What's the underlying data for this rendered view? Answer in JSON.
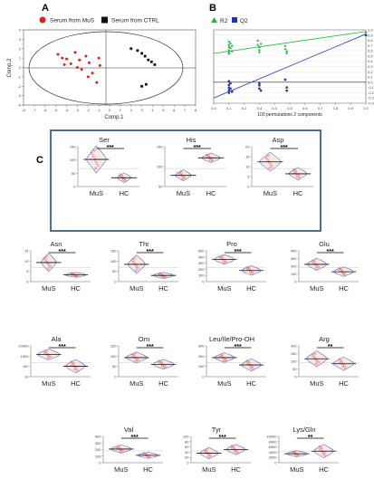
{
  "panels": {
    "a": "A",
    "b": "B",
    "c": "C"
  },
  "panel_a": {
    "legend": [
      {
        "label": "Serum from MuS",
        "color": "#e02020"
      },
      {
        "label": "Serum from CTRL",
        "color": "#111111"
      }
    ],
    "xlabel": "Comp.1",
    "ylabel": "Comp.2",
    "x_ticks": [
      "-8",
      "-7",
      "-6",
      "-5",
      "-4",
      "-3",
      "-2",
      "-1",
      "0",
      "1",
      "2",
      "3",
      "4",
      "5",
      "6",
      "7",
      "8"
    ],
    "y_ticks": [
      "4",
      "3",
      "2",
      "1",
      "0",
      "-1",
      "-2",
      "-3",
      "-4"
    ]
  },
  "panel_b": {
    "legend": [
      {
        "label": "R2",
        "color": "#29b34a",
        "marker": "triangle"
      },
      {
        "label": "Q2",
        "color": "#1f2fbf",
        "marker": "square"
      }
    ],
    "xlabel": "100 permutations 2 components",
    "x_ticks": [
      "0.0",
      "0.1",
      "0.2",
      "0.3",
      "0.4",
      "0.5",
      "0.6",
      "0.7",
      "0.8",
      "0.9",
      "1.0"
    ],
    "y_ticks": [
      "1.0",
      "0.9",
      "0.8",
      "0.7",
      "0.6",
      "0.5",
      "0.4",
      "0.3",
      "0.2",
      "0.1",
      "0.0",
      "-0.1",
      "-0.2",
      "-0.3",
      "-0.4"
    ]
  },
  "chart_data": [
    {
      "type": "scatter",
      "panel": "A",
      "xlabel": "Comp.1",
      "ylabel": "Comp.2",
      "xlim": [
        -8,
        8
      ],
      "ylim": [
        -4,
        4
      ],
      "series": [
        {
          "name": "Serum from MuS",
          "x": [
            -4.8,
            -4.4,
            -4.0,
            -3.6,
            -3.2,
            -2.8,
            -2.6,
            -2.2,
            -1.9,
            -1.6,
            -1.2,
            -0.9,
            -3.0,
            -2.0,
            -4.2,
            -1.0
          ],
          "y": [
            1.4,
            1.0,
            0.9,
            0.4,
            1.6,
            0.8,
            -0.2,
            1.2,
            0.5,
            -0.6,
            -1.6,
            0.2,
            0.0,
            -1.0,
            0.3,
            1.0
          ]
        },
        {
          "name": "Serum from CTRL",
          "x": [
            2.0,
            2.6,
            3.0,
            3.3,
            3.6,
            3.9,
            4.2,
            3.4,
            3.0
          ],
          "y": [
            2.0,
            1.8,
            1.5,
            1.2,
            0.8,
            0.6,
            0.3,
            -1.8,
            -2.0
          ]
        }
      ]
    },
    {
      "type": "scatter",
      "panel": "B",
      "xlabel": "100 permutations 2 components",
      "xlim": [
        0.0,
        1.0
      ],
      "ylim": [
        -0.4,
        1.0
      ],
      "series": [
        {
          "name": "R2",
          "x": [
            0.1,
            0.1,
            0.1,
            0.1,
            0.1,
            0.1,
            0.11,
            0.11,
            0.12,
            0.12,
            0.29,
            0.29,
            0.3,
            0.3,
            0.3,
            0.31,
            0.47,
            0.47,
            0.48,
            0.48,
            1.0
          ],
          "y": [
            0.78,
            0.72,
            0.68,
            0.62,
            0.58,
            0.55,
            0.75,
            0.66,
            0.7,
            0.6,
            0.8,
            0.72,
            0.68,
            0.62,
            0.58,
            0.74,
            0.7,
            0.64,
            0.6,
            0.56,
            0.96
          ]
        },
        {
          "name": "Q2",
          "x": [
            0.1,
            0.1,
            0.1,
            0.1,
            0.1,
            0.11,
            0.11,
            0.12,
            0.3,
            0.3,
            0.3,
            0.31,
            0.47,
            0.48,
            0.48,
            1.0
          ],
          "y": [
            0.02,
            -0.05,
            -0.1,
            -0.15,
            -0.2,
            -0.02,
            -0.12,
            -0.18,
            -0.02,
            -0.06,
            -0.12,
            -0.16,
            0.05,
            -0.1,
            -0.16,
            0.9
          ]
        }
      ],
      "lines": [
        {
          "name": "R2",
          "x": [
            0.0,
            1.0
          ],
          "y": [
            0.55,
            0.97
          ]
        },
        {
          "name": "Q2",
          "x": [
            0.0,
            1.0
          ],
          "y": [
            -0.3,
            0.92
          ]
        }
      ]
    }
  ],
  "violins": [
    {
      "key": "ser",
      "title": "Ser",
      "yticks": [
        "150",
        "100",
        "50",
        "0"
      ],
      "groups": [
        "MuS",
        "HC"
      ],
      "sig": "***",
      "mus_med": 0.68,
      "hc_med": 0.22,
      "mus_w": 0.9,
      "hc_w": 0.6,
      "mus_spread": 0.34,
      "hc_spread": 0.12
    },
    {
      "key": "his",
      "title": "His",
      "yticks": [
        "150",
        "100",
        "50"
      ],
      "groups": [
        "MuS",
        "HC"
      ],
      "sig": "***",
      "mus_med": 0.28,
      "hc_med": 0.72,
      "mus_w": 0.7,
      "hc_w": 0.8,
      "mus_spread": 0.14,
      "hc_spread": 0.12
    },
    {
      "key": "asp",
      "title": "Asp",
      "yticks": [
        "20",
        "15",
        "10",
        "5",
        "0"
      ],
      "groups": [
        "MuS",
        "HC"
      ],
      "sig": "***",
      "mus_med": 0.62,
      "hc_med": 0.32,
      "mus_w": 0.95,
      "hc_w": 0.8,
      "mus_spread": 0.24,
      "hc_spread": 0.16
    },
    {
      "key": "asn",
      "title": "Asn",
      "yticks": [
        "15",
        "10",
        "5",
        "0"
      ],
      "groups": [
        "MuS",
        "HC"
      ],
      "sig": "***",
      "mus_med": 0.62,
      "hc_med": 0.22,
      "mus_w": 0.7,
      "hc_w": 0.9,
      "mus_spread": 0.3,
      "hc_spread": 0.08
    },
    {
      "key": "thr",
      "title": "Thr",
      "yticks": [
        "150",
        "100",
        "50",
        "0"
      ],
      "groups": [
        "MuS",
        "HC"
      ],
      "sig": "***",
      "mus_med": 0.56,
      "hc_med": 0.2,
      "mus_w": 0.8,
      "hc_w": 0.9,
      "mus_spread": 0.3,
      "hc_spread": 0.1
    },
    {
      "key": "pro",
      "title": "Pro",
      "yticks": [
        "500",
        "400",
        "300",
        "200",
        "100",
        "0"
      ],
      "groups": [
        "MuS",
        "HC"
      ],
      "sig": "***",
      "mus_med": 0.72,
      "hc_med": 0.36,
      "mus_w": 0.9,
      "hc_w": 0.85,
      "mus_spread": 0.16,
      "hc_spread": 0.16
    },
    {
      "key": "glu",
      "title": "Glu",
      "yticks": [
        "400",
        "300",
        "200",
        "100",
        "0"
      ],
      "groups": [
        "MuS",
        "HC"
      ],
      "sig": "***",
      "mus_med": 0.56,
      "hc_med": 0.32,
      "mus_w": 0.9,
      "hc_w": 0.9,
      "mus_spread": 0.2,
      "hc_spread": 0.16
    },
    {
      "key": "ala",
      "title": "Ala",
      "yticks": [
        "10000",
        "1000",
        "100",
        "10"
      ],
      "groups": [
        "MuS",
        "HC"
      ],
      "sig": "***",
      "mus_med": 0.72,
      "hc_med": 0.34,
      "mus_w": 1.0,
      "hc_w": 0.9,
      "mus_spread": 0.18,
      "hc_spread": 0.22
    },
    {
      "key": "orn",
      "title": "Orn",
      "yticks": [
        "150",
        "100",
        "50",
        "0"
      ],
      "groups": [
        "MuS",
        "HC"
      ],
      "sig": "***",
      "mus_med": 0.62,
      "hc_med": 0.4,
      "mus_w": 0.95,
      "hc_w": 0.95,
      "mus_spread": 0.18,
      "hc_spread": 0.16
    },
    {
      "key": "leu",
      "title": "Leu/Ile/Pro-OH",
      "yticks": [
        "300",
        "200",
        "100",
        "0"
      ],
      "groups": [
        "MuS",
        "HC"
      ],
      "sig": "***",
      "mus_med": 0.62,
      "hc_med": 0.38,
      "mus_w": 0.9,
      "hc_w": 0.9,
      "mus_spread": 0.16,
      "hc_spread": 0.2
    },
    {
      "key": "arg",
      "title": "Arg",
      "yticks": [
        "200",
        "150",
        "100",
        "50",
        "0"
      ],
      "groups": [
        "MuS",
        "HC"
      ],
      "sig": "**",
      "mus_med": 0.58,
      "hc_med": 0.42,
      "mus_w": 0.95,
      "hc_w": 0.95,
      "mus_spread": 0.26,
      "hc_spread": 0.22
    },
    {
      "key": "val",
      "title": "Val",
      "yticks": [
        "400",
        "300",
        "200",
        "100",
        "0"
      ],
      "groups": [
        "MuS",
        "HC"
      ],
      "sig": "***",
      "mus_med": 0.52,
      "hc_med": 0.28,
      "mus_w": 0.9,
      "hc_w": 0.9,
      "mus_spread": 0.16,
      "hc_spread": 0.12
    },
    {
      "key": "tyr",
      "title": "Tyr",
      "yticks": [
        "100",
        "80",
        "60",
        "40",
        "20",
        "0"
      ],
      "groups": [
        "MuS",
        "HC"
      ],
      "sig": "***",
      "mus_med": 0.36,
      "hc_med": 0.5,
      "mus_w": 0.85,
      "hc_w": 0.85,
      "mus_spread": 0.22,
      "hc_spread": 0.2
    },
    {
      "key": "lys",
      "title": "Lys/Gln",
      "yticks": [
        "10000",
        "8000",
        "6000",
        "4000",
        "2000",
        "0"
      ],
      "groups": [
        "MuS",
        "HC"
      ],
      "sig": "**",
      "mus_med": 0.34,
      "hc_med": 0.44,
      "mus_w": 0.9,
      "hc_w": 0.9,
      "mus_spread": 0.12,
      "hc_spread": 0.26
    }
  ]
}
